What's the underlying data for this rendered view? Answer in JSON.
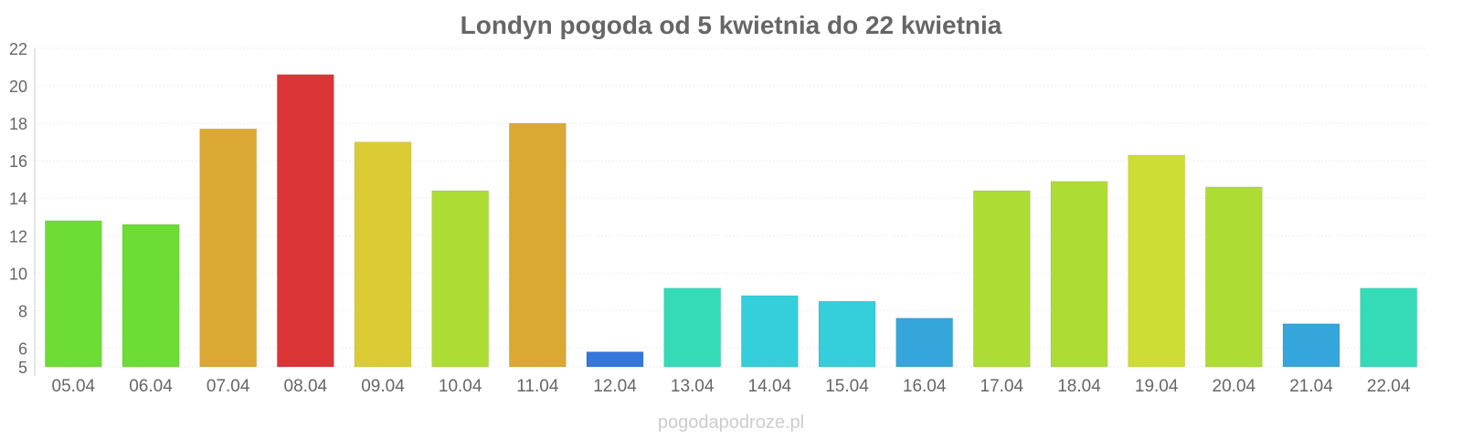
{
  "chart_data": {
    "type": "bar",
    "title": "Londyn pogoda od 5 kwietnia do 22 kwietnia",
    "credit": "pogodapodroze.pl",
    "xlabel": "",
    "ylabel": "",
    "ylim": [
      5,
      22
    ],
    "yticks": [
      5,
      6,
      8,
      10,
      12,
      14,
      16,
      18,
      20,
      22
    ],
    "grid": true,
    "categories": [
      "05.04",
      "06.04",
      "07.04",
      "08.04",
      "09.04",
      "10.04",
      "11.04",
      "12.04",
      "13.04",
      "14.04",
      "15.04",
      "16.04",
      "17.04",
      "18.04",
      "19.04",
      "20.04",
      "21.04",
      "22.04"
    ],
    "values": [
      12.8,
      12.6,
      17.7,
      20.6,
      17.0,
      14.4,
      18.0,
      5.8,
      9.2,
      8.8,
      8.5,
      7.6,
      14.4,
      14.9,
      16.3,
      14.6,
      7.3,
      9.2
    ],
    "colors": [
      "#6ddd35",
      "#6ddd35",
      "#dba834",
      "#dc3535",
      "#dbcc35",
      "#addd35",
      "#dba834",
      "#3577dc",
      "#34dbb6",
      "#35cedb",
      "#35cedb",
      "#35a6db",
      "#addd35",
      "#addd35",
      "#cedd35",
      "#addd35",
      "#35a6db",
      "#34dbb6"
    ]
  }
}
